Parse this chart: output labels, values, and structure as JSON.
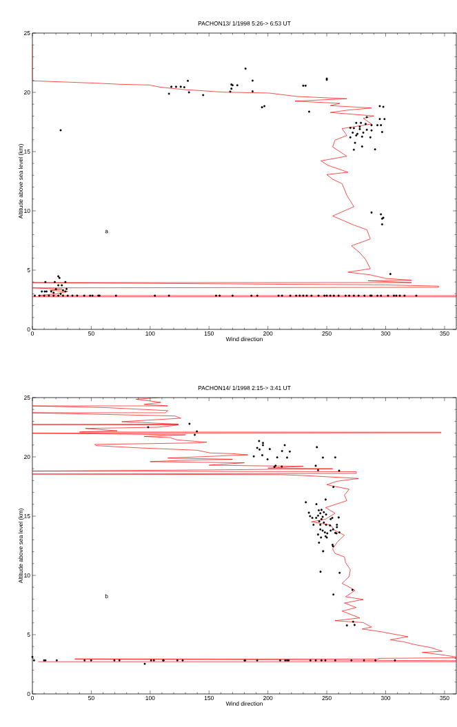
{
  "chart_data": [
    {
      "type": "line",
      "title": "PACHON13/ 1/1998 5:26-> 6:53 UT",
      "xlabel": "Wind direction",
      "ylabel": "Altitude above sea level (km)",
      "annotations": [
        "a"
      ],
      "xlim": [
        0,
        360
      ],
      "ylim": [
        0,
        25
      ],
      "xticks": [
        0,
        50,
        100,
        150,
        200,
        250,
        300,
        350
      ],
      "yticks": [
        0,
        5,
        10,
        15,
        20,
        25
      ],
      "grid": false,
      "legend": false,
      "series": [
        {
          "color": "#ff0000",
          "marker": "none",
          "line_style": "solid",
          "x": [
            0,
            360,
            360,
            5,
            20,
            30,
            15,
            25,
            0,
            345,
            345,
            300,
            0,
            322,
            285,
            322,
            300,
            287,
            268,
            287,
            283,
            278,
            271,
            287,
            284,
            273,
            255,
            273,
            267,
            263,
            255,
            250,
            268,
            251,
            245,
            267,
            255,
            257,
            267,
            263,
            275,
            288,
            281,
            290,
            253,
            267,
            288,
            253,
            261,
            223,
            267,
            225,
            201,
            171,
            161,
            144,
            129,
            109,
            99,
            74,
            53,
            0,
            0
          ],
          "values": [
            2.75,
            2.75,
            2.85,
            2.85,
            3.0,
            3.2,
            3.3,
            3.4,
            3.5,
            3.55,
            3.65,
            3.75,
            3.95,
            3.95,
            4.1,
            4.15,
            4.3,
            4.6,
            4.83,
            5.12,
            5.89,
            6.47,
            7.05,
            7.63,
            8.41,
            8.8,
            9.57,
            10.35,
            11.32,
            12.29,
            12.67,
            13.06,
            13.26,
            13.84,
            14.22,
            14.61,
            15.39,
            15.97,
            16.36,
            16.94,
            17.13,
            17.33,
            17.81,
            18.01,
            18.3,
            18.49,
            18.68,
            18.88,
            19.07,
            19.26,
            19.46,
            19.65,
            19.94,
            20.0,
            20.02,
            20.14,
            20.23,
            20.43,
            20.62,
            20.68,
            20.78,
            20.97,
            24.0
          ]
        },
        {
          "type": "scatter",
          "color": "#000000",
          "marker": "circle",
          "x": [
            2,
            6,
            10,
            14,
            18,
            22,
            26,
            30,
            34,
            38,
            44,
            49,
            51,
            56,
            57,
            71,
            104,
            116,
            156,
            159,
            170,
            186,
            191,
            209,
            212,
            219,
            224,
            227,
            230,
            233,
            237,
            243,
            248,
            250,
            253,
            256,
            260,
            266,
            269,
            273,
            277,
            282,
            287,
            288,
            293,
            296,
            302,
            307,
            309,
            312,
            316,
            326,
            8,
            10.5,
            12,
            11,
            16,
            19,
            22,
            23,
            22,
            25,
            28,
            29,
            28,
            20,
            24,
            26,
            18,
            24,
            116,
            118,
            122,
            126,
            129,
            132,
            133,
            145,
            168,
            169,
            170,
            169,
            174,
            181,
            187,
            187,
            195,
            197,
            230,
            232,
            235,
            250,
            250,
            295,
            298,
            284,
            295,
            299,
            275,
            279,
            283,
            288,
            293,
            296,
            273,
            278,
            284,
            288,
            297,
            275,
            280,
            287,
            274,
            280,
            273,
            291,
            270,
            272,
            276,
            270,
            278,
            281,
            288,
            296,
            298,
            297,
            297,
            304
          ],
          "values": [
            2.85,
            2.85,
            2.85,
            2.85,
            2.85,
            2.85,
            2.85,
            2.85,
            2.85,
            2.85,
            2.85,
            2.85,
            2.85,
            2.85,
            2.85,
            2.85,
            2.85,
            2.85,
            2.85,
            2.85,
            2.85,
            2.85,
            2.85,
            2.85,
            2.85,
            2.85,
            2.85,
            2.85,
            2.85,
            2.85,
            2.85,
            2.85,
            2.85,
            2.85,
            2.85,
            2.85,
            2.85,
            2.85,
            2.85,
            2.85,
            2.85,
            2.85,
            2.85,
            2.85,
            2.85,
            2.85,
            2.85,
            2.85,
            2.85,
            2.85,
            2.85,
            2.85,
            3.2,
            3.2,
            3.2,
            4.0,
            3.2,
            4.0,
            4.48,
            4.34,
            3.72,
            3.72,
            4.0,
            3.41,
            3.2,
            3.4,
            3.0,
            3.3,
            3.1,
            16.8,
            19.88,
            20.47,
            20.47,
            20.47,
            20.43,
            20.97,
            20.0,
            19.77,
            20.06,
            20.66,
            20.6,
            20.31,
            20.6,
            22.0,
            20.99,
            20.08,
            18.74,
            18.84,
            20.56,
            20.56,
            18.37,
            21.16,
            21.06,
            18.84,
            18.78,
            17.91,
            17.75,
            17.75,
            17.42,
            17.42,
            17.33,
            17.23,
            17.23,
            17.23,
            16.98,
            16.9,
            16.84,
            16.79,
            16.65,
            16.36,
            16.26,
            16.2,
            15.74,
            15.43,
            15.16,
            15.19,
            17.0,
            16.6,
            16.5,
            16.2,
            17.1,
            16.6,
            9.86,
            9.71,
            9.42,
            9.34,
            8.86,
            4.67
          ]
        }
      ]
    },
    {
      "type": "line",
      "title": "PACHON14/ 1/1998 2:15-> 3:41 UT",
      "xlabel": "Wind direction",
      "ylabel": "Altitude above sea level (km)",
      "annotations": [
        "b"
      ],
      "xlim": [
        0,
        360
      ],
      "ylim": [
        0,
        25
      ],
      "xticks": [
        0,
        50,
        100,
        150,
        200,
        250,
        300,
        350
      ],
      "yticks": [
        0,
        5,
        10,
        15,
        20,
        25
      ],
      "grid": false,
      "legend": false,
      "series": [
        {
          "color": "#ff0000",
          "marker": "none",
          "line_style": "solid",
          "x": [
            5,
            360,
            360,
            36,
            294,
            294,
            360,
            360,
            347,
            331,
            348,
            339,
            324,
            316,
            304,
            319,
            306,
            296,
            280,
            288,
            281,
            257,
            278,
            263,
            275,
            265,
            281,
            266,
            274,
            267,
            263,
            269,
            270,
            266,
            265,
            257,
            255,
            259,
            265,
            257,
            253,
            237,
            249,
            257,
            249,
            258,
            267,
            265,
            269,
            250,
            259,
            277,
            249,
            230,
            211,
            0,
            275,
            275,
            0,
            150,
            255,
            200,
            230,
            150,
            180,
            100,
            125,
            170,
            115,
            183,
            170,
            151,
            140,
            91,
            54,
            53,
            140,
            148,
            123,
            117,
            95,
            130,
            0,
            347,
            347,
            40,
            72,
            45,
            107,
            124,
            0,
            124,
            76,
            126,
            121,
            0,
            113,
            115,
            64,
            0,
            115,
            95,
            109,
            88,
            108
          ],
          "values": [
            2.72,
            2.72,
            2.8,
            2.95,
            2.95,
            3.0,
            3.05,
            3.12,
            3.31,
            3.5,
            3.6,
            3.89,
            4.18,
            4.38,
            4.57,
            4.83,
            5.06,
            5.25,
            5.48,
            5.64,
            6.02,
            6.18,
            6.41,
            6.99,
            7.29,
            7.67,
            7.97,
            8.2,
            8.74,
            9.13,
            9.32,
            9.91,
            10.49,
            11.07,
            11.56,
            11.85,
            12.24,
            12.82,
            13.39,
            13.78,
            14.26,
            14.52,
            14.75,
            15.24,
            15.72,
            16.01,
            16.3,
            16.78,
            17.27,
            17.65,
            17.95,
            18.18,
            18.33,
            18.43,
            18.5,
            18.55,
            18.6,
            18.75,
            18.8,
            18.9,
            19.0,
            19.05,
            19.2,
            19.3,
            19.5,
            19.6,
            19.7,
            19.8,
            19.9,
            20.17,
            20.27,
            20.33,
            20.56,
            20.76,
            20.95,
            21.05,
            21.18,
            21.24,
            21.43,
            21.62,
            21.72,
            21.86,
            22.0,
            22.03,
            22.08,
            22.1,
            22.2,
            22.4,
            22.5,
            22.7,
            22.73,
            22.76,
            22.97,
            23.26,
            23.45,
            23.72,
            23.72,
            23.9,
            24.15,
            24.3,
            24.3,
            24.43,
            24.6,
            24.86,
            25.0
          ]
        },
        {
          "type": "scatter",
          "color": "#000000",
          "marker": "circle",
          "x": [
            192.5,
            195.8,
            195.8,
            190.9,
            192.9,
            201.6,
            214.3,
            212.0,
            218.6,
            216.3,
            207.9,
            195.2,
            188.0,
            199.7,
            206.5,
            205.5,
            211.8,
            241.6,
            246.7,
            257.2,
            240.6,
            242.6,
            260.5,
            255.6,
            249.0,
            232.2,
            241.2,
            234.8,
            235.8,
            237.7,
            241.0,
            243.2,
            245.5,
            247.5,
            244.5,
            242.6,
            246.5,
            249.4,
            245.5,
            243.6,
            247.5,
            238.7,
            244.5,
            249.4,
            253.3,
            254.7,
            260.1,
            252.7,
            258.6,
            258.6,
            257.2,
            258.2,
            260.7,
            244.5,
            246.5,
            253.3,
            255.3,
            248.4,
            250.4,
            242.6,
            245.1,
            249.0,
            250.0,
            243.4,
            254.9,
            255.3,
            246.9,
            244.7,
            260.9,
            255.6,
            271.8,
            272.4,
            267.1,
            273.6,
            180.6,
            190.9,
            210.4,
            214.7,
            216.3,
            217.6,
            236.1,
            240.6,
            245.5,
            248.8,
            257.2,
            270.9,
            281.6,
            291.3,
            307.9,
            133.4,
            139.7,
            137.9,
            98.3,
            0,
            1.4,
            9.9,
            11.1,
            20.7,
            44.3,
            49.9,
            69.6,
            73.9,
            100.8,
            103.2,
            111,
            111.4,
            123.1,
            127.6,
            180.2,
            95.4
          ],
          "values": [
            21.34,
            21.18,
            20.99,
            20.76,
            20.62,
            20.66,
            20.99,
            20.49,
            20.45,
            19.94,
            19.96,
            20.14,
            20.04,
            19.79,
            19.25,
            19.15,
            19.19,
            20.82,
            19.94,
            19.96,
            19.25,
            18.88,
            18.84,
            17.46,
            16.4,
            16.17,
            16.01,
            15.29,
            15.0,
            14.85,
            14.85,
            15.49,
            15.53,
            15.33,
            15.24,
            15.04,
            14.94,
            15.14,
            14.75,
            14.56,
            14.46,
            14.27,
            14.27,
            14.27,
            14.75,
            14.85,
            14.89,
            14.21,
            14.27,
            14.07,
            13.59,
            13.55,
            13.63,
            13.88,
            13.78,
            13.78,
            13.88,
            13.63,
            13.55,
            13.45,
            13.2,
            13.3,
            13.2,
            12.76,
            12.58,
            12.46,
            12.04,
            10.31,
            10.22,
            8.39,
            8.78,
            6.09,
            5.78,
            5.82,
            2.83,
            2.83,
            2.83,
            2.83,
            2.83,
            2.83,
            2.83,
            2.83,
            2.83,
            2.83,
            2.83,
            2.83,
            2.83,
            2.83,
            2.83,
            22.79,
            22.15,
            21.86,
            22.5,
            3.12,
            2.83,
            2.83,
            2.83,
            2.83,
            2.83,
            2.83,
            2.83,
            2.83,
            2.83,
            2.83,
            2.83,
            2.83,
            2.83,
            2.83,
            2.83,
            2.54
          ]
        }
      ]
    }
  ]
}
